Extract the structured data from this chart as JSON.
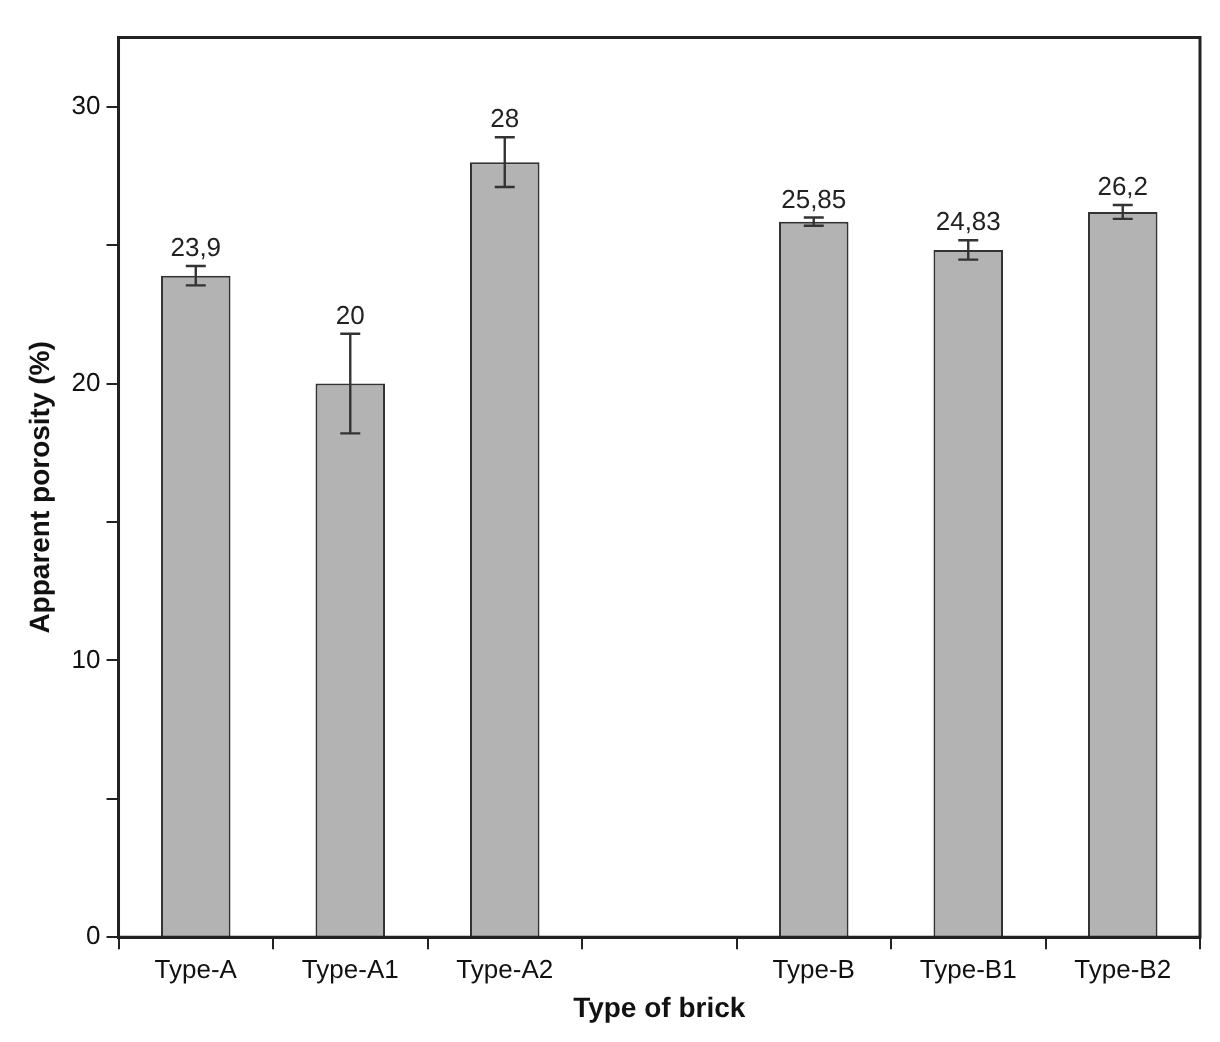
{
  "chart_data": {
    "type": "bar",
    "xlabel": "Type of brick",
    "ylabel": "Apparent porosity (%)",
    "categories": [
      "Type-A",
      "Type-A1",
      "Type-A2",
      null,
      "Type-B",
      "Type-B1",
      "Type-B2"
    ],
    "values": [
      23.9,
      20,
      28,
      null,
      25.85,
      24.83,
      26.2
    ],
    "value_labels": [
      "23,9",
      "20",
      "28",
      null,
      "25,85",
      "24,83",
      "26,2"
    ],
    "errors": [
      0.35,
      1.8,
      0.9,
      null,
      0.15,
      0.35,
      0.25
    ],
    "color": "#b3b3b3",
    "ylim": [
      0,
      32.5
    ],
    "yticks": [
      0,
      {
        "value": 5,
        "label": null
      },
      10,
      {
        "value": 15,
        "label": null
      },
      20,
      {
        "value": 25,
        "label": null
      },
      30
    ],
    "grid": false,
    "legend": false
  }
}
